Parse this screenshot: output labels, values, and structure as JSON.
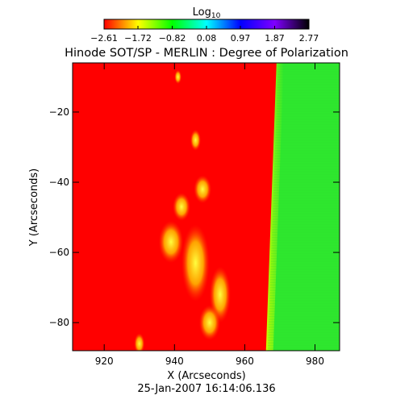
{
  "chart_data": {
    "type": "heatmap",
    "title": "Hinode SOT/SP - MERLIN : Degree of Polarization",
    "subtitle": "25-Jan-2007 16:14:06.136",
    "xlabel": "X (Arcseconds)",
    "ylabel": "Y (Arcseconds)",
    "xlim": [
      911,
      987
    ],
    "ylim": [
      -88,
      -6
    ],
    "x_ticks": [
      920,
      940,
      960,
      980
    ],
    "y_ticks": [
      -20,
      -40,
      -60,
      -80
    ],
    "x_tick_labels": [
      "920",
      "940",
      "960",
      "980"
    ],
    "y_tick_labels": [
      "−20",
      "−40",
      "−60",
      "−80"
    ],
    "colorbar": {
      "label_base": "Log",
      "label_sub": "10",
      "range": [
        -2.61,
        2.77
      ],
      "ticks": [
        -2.61,
        -1.72,
        -0.82,
        0.08,
        0.97,
        1.87,
        2.77
      ],
      "tick_labels": [
        "−2.61",
        "−1.72",
        "−0.82",
        "0.08",
        "0.97",
        "1.87",
        "2.77"
      ],
      "colormap": [
        "#ff0000",
        "#ffff00",
        "#00ff00",
        "#00ffff",
        "#0000ff",
        "#8000ff",
        "#000000"
      ]
    },
    "regions": [
      {
        "name": "disk",
        "value": -2.61,
        "color": "#ff0000"
      },
      {
        "name": "off-limb",
        "value": -1.2,
        "color": "#2fe82f"
      }
    ],
    "limb_x": [
      [
        -6,
        969.5
      ],
      [
        -88,
        966.5
      ]
    ],
    "bright_patches": [
      {
        "x": 939,
        "y": -57,
        "rx": 3.5,
        "ry": 6
      },
      {
        "x": 946,
        "y": -63,
        "rx": 4,
        "ry": 11
      },
      {
        "x": 953,
        "y": -72,
        "rx": 3,
        "ry": 8
      },
      {
        "x": 942,
        "y": -47,
        "rx": 2.5,
        "ry": 4
      },
      {
        "x": 948,
        "y": -42,
        "rx": 2.5,
        "ry": 4
      },
      {
        "x": 950,
        "y": -80,
        "rx": 3,
        "ry": 5
      },
      {
        "x": 930,
        "y": -86,
        "rx": 1.5,
        "ry": 3
      },
      {
        "x": 941,
        "y": -10,
        "rx": 1,
        "ry": 2
      },
      {
        "x": 946,
        "y": -28,
        "rx": 1.5,
        "ry": 3
      }
    ]
  }
}
